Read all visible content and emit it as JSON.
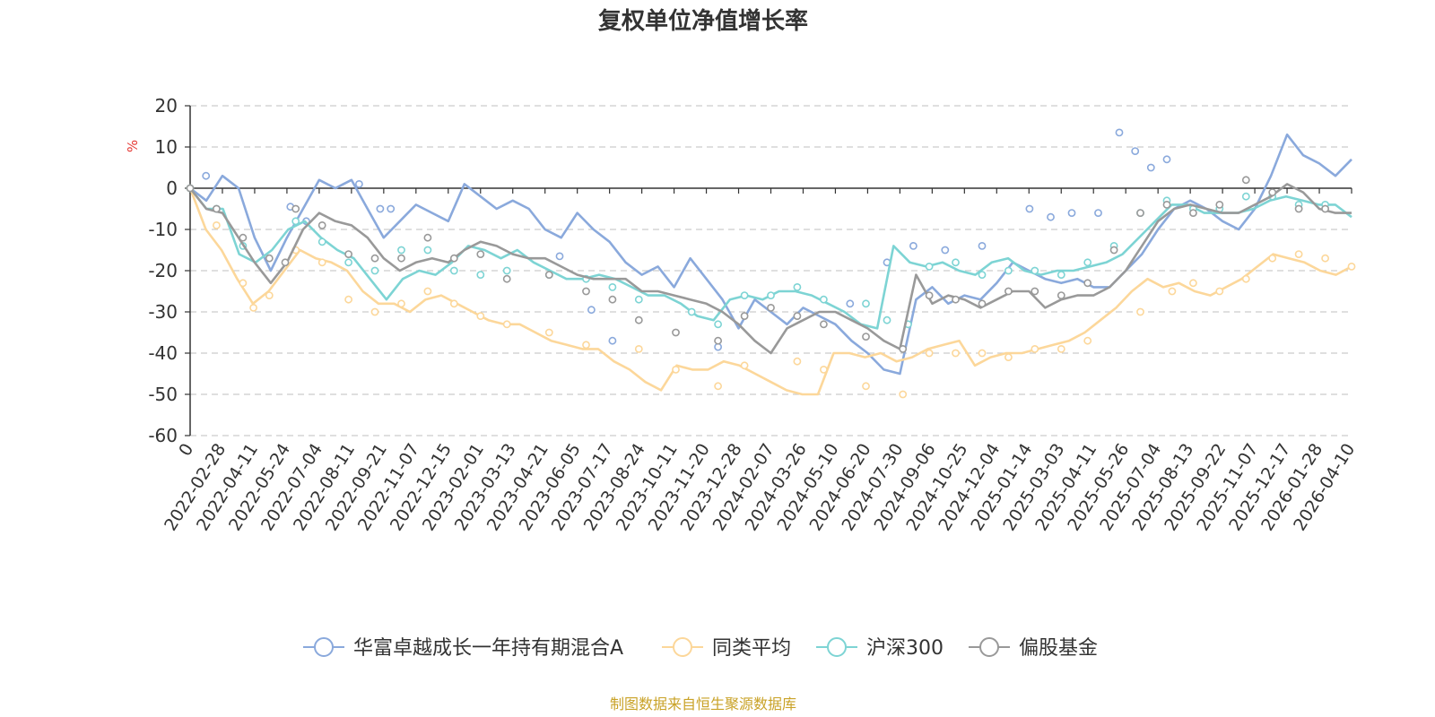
{
  "chart_data": {
    "type": "line",
    "title": "复权单位净值增长率",
    "ylabel": "%",
    "xlabel": "",
    "ylim": [
      -60,
      20
    ],
    "yticks": [
      20,
      10,
      0,
      -10,
      -20,
      -30,
      -40,
      -50,
      -60
    ],
    "x_tick_labels": [
      "0",
      "2022-02-28",
      "2022-04-11",
      "2022-05-24",
      "2022-07-04",
      "2022-08-11",
      "2022-09-21",
      "2022-11-07",
      "2022-12-15",
      "2023-02-01",
      "2023-03-13",
      "2023-04-21",
      "2023-06-05",
      "2023-07-17",
      "2023-08-24",
      "2023-10-11",
      "2023-11-20",
      "2023-12-28",
      "2024-02-07",
      "2024-03-26",
      "2024-05-10",
      "2024-06-20",
      "2024-07-30",
      "2024-09-06",
      "2024-10-25",
      "2024-12-04",
      "2025-01-14",
      "2025-03-03",
      "2025-04-11",
      "2025-05-26",
      "2025-07-04",
      "2025-08-13",
      "2025-09-22",
      "2025-11-07",
      "2025-12-17",
      "2026-01-28",
      "2026-04-10"
    ],
    "source": "制图数据来自恒生聚源数据库",
    "series": [
      {
        "name": "华富卓越成长一年持有期混合A",
        "color": "#8aa9dc",
        "values": [
          0,
          -3,
          3,
          0,
          -12,
          -20,
          -12,
          -5,
          2,
          0,
          2,
          -5,
          -12,
          -8,
          -4,
          -6,
          -8,
          1,
          -2,
          -5,
          -3,
          -5,
          -10,
          -12,
          -6,
          -10,
          -13,
          -18,
          -21,
          -19,
          -24,
          -17,
          -22,
          -27,
          -34,
          -27,
          -30,
          -33,
          -29,
          -31,
          -33,
          -37,
          -40,
          -44,
          -45,
          -27,
          -24,
          -28,
          -26,
          -27,
          -23,
          -18,
          -20,
          -22,
          -23,
          -22,
          -24,
          -24,
          -20,
          -16,
          -10,
          -5,
          -3,
          -5,
          -8,
          -10,
          -5,
          3,
          13,
          8,
          6,
          3,
          7
        ],
        "markers": [
          [
            0,
            0
          ],
          [
            3,
            3
          ],
          [
            19,
            -4.5
          ],
          [
            22,
            -8
          ],
          [
            32,
            1
          ],
          [
            36,
            -5
          ],
          [
            38,
            -5
          ],
          [
            70,
            -16.5
          ],
          [
            76,
            -29.5
          ],
          [
            80,
            -37
          ],
          [
            100,
            -38.5
          ],
          [
            125,
            -28
          ],
          [
            132,
            -18
          ],
          [
            137,
            -14
          ],
          [
            143,
            -15
          ],
          [
            150,
            -14
          ],
          [
            159,
            -5
          ],
          [
            163,
            -7
          ],
          [
            167,
            -6
          ],
          [
            172,
            -6
          ],
          [
            176,
            13.5
          ],
          [
            179,
            9
          ],
          [
            182,
            5
          ],
          [
            185,
            7
          ]
        ]
      },
      {
        "name": "同类平均",
        "color": "#fcd79a",
        "values": [
          0,
          -10,
          -15,
          -22,
          -28,
          -25,
          -20,
          -15,
          -17,
          -18,
          -20,
          -25,
          -28,
          -28,
          -30,
          -27,
          -26,
          -28,
          -30,
          -32,
          -33,
          -33,
          -35,
          -37,
          -38,
          -39,
          -39,
          -42,
          -44,
          -47,
          -49,
          -43,
          -44,
          -44,
          -42,
          -43,
          -45,
          -47,
          -49,
          -50,
          -50,
          -40,
          -40,
          -41,
          -40,
          -42,
          -41,
          -39,
          -38,
          -37,
          -43,
          -41,
          -40,
          -40,
          -39,
          -38,
          -37,
          -35,
          -32,
          -29,
          -25,
          -22,
          -24,
          -23,
          -25,
          -26,
          -24,
          -22,
          -19,
          -16,
          -17,
          -18,
          -20,
          -21,
          -19
        ],
        "markers": [
          [
            0,
            0
          ],
          [
            5,
            -9
          ],
          [
            10,
            -23
          ],
          [
            12,
            -29
          ],
          [
            15,
            -26
          ],
          [
            20,
            -15
          ],
          [
            25,
            -18
          ],
          [
            30,
            -27
          ],
          [
            35,
            -30
          ],
          [
            40,
            -28
          ],
          [
            45,
            -25
          ],
          [
            50,
            -28
          ],
          [
            55,
            -31
          ],
          [
            60,
            -33
          ],
          [
            68,
            -35
          ],
          [
            75,
            -38
          ],
          [
            85,
            -39
          ],
          [
            92,
            -44
          ],
          [
            100,
            -48
          ],
          [
            105,
            -43
          ],
          [
            115,
            -42
          ],
          [
            120,
            -44
          ],
          [
            128,
            -48
          ],
          [
            135,
            -50
          ],
          [
            140,
            -40
          ],
          [
            145,
            -40
          ],
          [
            150,
            -40
          ],
          [
            155,
            -41
          ],
          [
            160,
            -39
          ],
          [
            165,
            -39
          ],
          [
            170,
            -37
          ],
          [
            180,
            -30
          ],
          [
            186,
            -25
          ],
          [
            190,
            -23
          ],
          [
            195,
            -25
          ],
          [
            200,
            -22
          ],
          [
            205,
            -17
          ],
          [
            210,
            -16
          ],
          [
            215,
            -17
          ],
          [
            220,
            -19
          ]
        ]
      },
      {
        "name": "沪深300",
        "color": "#7dd4d4",
        "values": [
          0,
          -5,
          -5,
          -16,
          -18,
          -15,
          -10,
          -8,
          -12,
          -15,
          -17,
          -22,
          -27,
          -22,
          -20,
          -21,
          -18,
          -14,
          -15,
          -17,
          -15,
          -18,
          -20,
          -22,
          -22,
          -21,
          -22,
          -24,
          -26,
          -26,
          -28,
          -31,
          -32,
          -27,
          -26,
          -27,
          -25,
          -25,
          -26,
          -28,
          -30,
          -33,
          -34,
          -14,
          -18,
          -19,
          -18,
          -20,
          -21,
          -18,
          -17,
          -20,
          -21,
          -20,
          -20,
          -19,
          -18,
          -16,
          -12,
          -8,
          -4,
          -4,
          -6,
          -6,
          -6,
          -5,
          -3,
          -2,
          -3,
          -4,
          -4,
          -7
        ],
        "markers": [
          [
            0,
            0
          ],
          [
            5,
            -5
          ],
          [
            10,
            -14
          ],
          [
            20,
            -8
          ],
          [
            25,
            -13
          ],
          [
            30,
            -18
          ],
          [
            35,
            -20
          ],
          [
            40,
            -15
          ],
          [
            45,
            -15
          ],
          [
            50,
            -20
          ],
          [
            55,
            -21
          ],
          [
            60,
            -20
          ],
          [
            68,
            -21
          ],
          [
            75,
            -22
          ],
          [
            80,
            -24
          ],
          [
            85,
            -27
          ],
          [
            95,
            -30
          ],
          [
            100,
            -33
          ],
          [
            105,
            -26
          ],
          [
            110,
            -26
          ],
          [
            115,
            -24
          ],
          [
            120,
            -27
          ],
          [
            128,
            -28
          ],
          [
            132,
            -32
          ],
          [
            136,
            -33
          ],
          [
            140,
            -19
          ],
          [
            145,
            -18
          ],
          [
            150,
            -21
          ],
          [
            155,
            -20
          ],
          [
            160,
            -20
          ],
          [
            165,
            -21
          ],
          [
            170,
            -18
          ],
          [
            175,
            -14
          ],
          [
            180,
            -6
          ],
          [
            185,
            -3
          ],
          [
            190,
            -5
          ],
          [
            195,
            -5
          ],
          [
            200,
            -2
          ],
          [
            205,
            -2
          ],
          [
            210,
            -4
          ],
          [
            215,
            -4
          ]
        ]
      },
      {
        "name": "偏股基金",
        "color": "#999999",
        "values": [
          0,
          -5,
          -6,
          -12,
          -18,
          -23,
          -18,
          -10,
          -6,
          -8,
          -9,
          -12,
          -17,
          -20,
          -18,
          -17,
          -18,
          -15,
          -13,
          -14,
          -16,
          -17,
          -17,
          -19,
          -21,
          -22,
          -22,
          -22,
          -25,
          -25,
          -26,
          -27,
          -28,
          -30,
          -33,
          -37,
          -40,
          -34,
          -32,
          -30,
          -30,
          -32,
          -34,
          -37,
          -39,
          -21,
          -28,
          -26,
          -27,
          -29,
          -27,
          -25,
          -25,
          -29,
          -27,
          -26,
          -26,
          -24,
          -20,
          -14,
          -8,
          -5,
          -4,
          -5,
          -6,
          -6,
          -4,
          -2,
          1,
          -1,
          -5,
          -6,
          -6
        ],
        "markers": [
          [
            0,
            0
          ],
          [
            5,
            -5
          ],
          [
            10,
            -12
          ],
          [
            15,
            -17
          ],
          [
            18,
            -18
          ],
          [
            20,
            -5
          ],
          [
            25,
            -9
          ],
          [
            30,
            -16
          ],
          [
            35,
            -17
          ],
          [
            40,
            -17
          ],
          [
            45,
            -12
          ],
          [
            50,
            -17
          ],
          [
            55,
            -16
          ],
          [
            60,
            -22
          ],
          [
            68,
            -21
          ],
          [
            75,
            -25
          ],
          [
            80,
            -27
          ],
          [
            85,
            -32
          ],
          [
            92,
            -35
          ],
          [
            100,
            -37
          ],
          [
            105,
            -31
          ],
          [
            110,
            -29
          ],
          [
            115,
            -31
          ],
          [
            120,
            -33
          ],
          [
            128,
            -36
          ],
          [
            135,
            -39
          ],
          [
            140,
            -26
          ],
          [
            145,
            -27
          ],
          [
            150,
            -28
          ],
          [
            155,
            -25
          ],
          [
            160,
            -25
          ],
          [
            165,
            -26
          ],
          [
            170,
            -23
          ],
          [
            175,
            -15
          ],
          [
            180,
            -6
          ],
          [
            185,
            -4
          ],
          [
            190,
            -6
          ],
          [
            195,
            -4
          ],
          [
            200,
            2
          ],
          [
            205,
            -1
          ],
          [
            210,
            -5
          ],
          [
            215,
            -5
          ]
        ]
      }
    ]
  }
}
